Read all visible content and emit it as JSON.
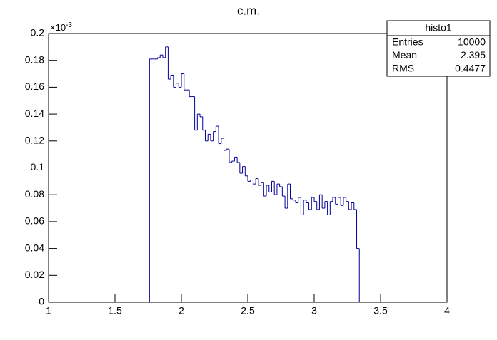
{
  "chart_data": {
    "type": "histogram",
    "title": "c.m.",
    "color": "#000099",
    "bins": [
      1.76,
      1.78,
      1.8,
      1.82,
      1.84,
      1.86,
      1.88,
      1.9,
      1.92,
      1.94,
      1.96,
      1.98,
      2.0,
      2.02,
      2.04,
      2.06,
      2.08,
      2.1,
      2.12,
      2.14,
      2.16,
      2.18,
      2.2,
      2.22,
      2.24,
      2.26,
      2.28,
      2.3,
      2.32,
      2.34,
      2.36,
      2.38,
      2.4,
      2.42,
      2.44,
      2.46,
      2.48,
      2.5,
      2.52,
      2.54,
      2.56,
      2.58,
      2.6,
      2.62,
      2.64,
      2.66,
      2.68,
      2.7,
      2.72,
      2.74,
      2.76,
      2.78,
      2.8,
      2.82,
      2.84,
      2.86,
      2.88,
      2.9,
      2.92,
      2.94,
      2.96,
      2.98,
      3.0,
      3.02,
      3.04,
      3.06,
      3.08,
      3.1,
      3.12,
      3.14,
      3.16,
      3.18,
      3.2,
      3.22,
      3.24,
      3.26,
      3.28,
      3.3,
      3.32,
      3.34
    ],
    "values": [
      0.181,
      0.181,
      0.181,
      0.182,
      0.184,
      0.182,
      0.19,
      0.166,
      0.169,
      0.16,
      0.163,
      0.16,
      0.17,
      0.158,
      0.158,
      0.153,
      0.153,
      0.128,
      0.14,
      0.138,
      0.128,
      0.12,
      0.125,
      0.12,
      0.127,
      0.131,
      0.118,
      0.122,
      0.113,
      0.114,
      0.104,
      0.105,
      0.108,
      0.104,
      0.096,
      0.101,
      0.094,
      0.09,
      0.091,
      0.088,
      0.092,
      0.087,
      0.089,
      0.079,
      0.087,
      0.082,
      0.09,
      0.08,
      0.088,
      0.086,
      0.079,
      0.07,
      0.088,
      0.077,
      0.076,
      0.074,
      0.078,
      0.065,
      0.076,
      0.074,
      0.069,
      0.078,
      0.075,
      0.069,
      0.08,
      0.07,
      0.075,
      0.065,
      0.075,
      0.078,
      0.073,
      0.078,
      0.072,
      0.078,
      0.075,
      0.069,
      0.074,
      0.069,
      0.04
    ],
    "xlim": [
      1,
      4
    ],
    "xticks": [
      1,
      1.5,
      2,
      2.5,
      3,
      3.5,
      4
    ],
    "ylim": [
      0,
      0.2
    ],
    "yticks": [
      0,
      0.02,
      0.04,
      0.06,
      0.08,
      0.1,
      0.12,
      0.14,
      0.16,
      0.18,
      0.2
    ],
    "y_multiplier": {
      "base": "×10",
      "exponent": "-3"
    },
    "stats": {
      "title": "histo1",
      "rows": [
        [
          "Entries",
          10000
        ],
        [
          "Mean",
          2.395
        ],
        [
          "RMS",
          0.4477
        ]
      ]
    }
  }
}
